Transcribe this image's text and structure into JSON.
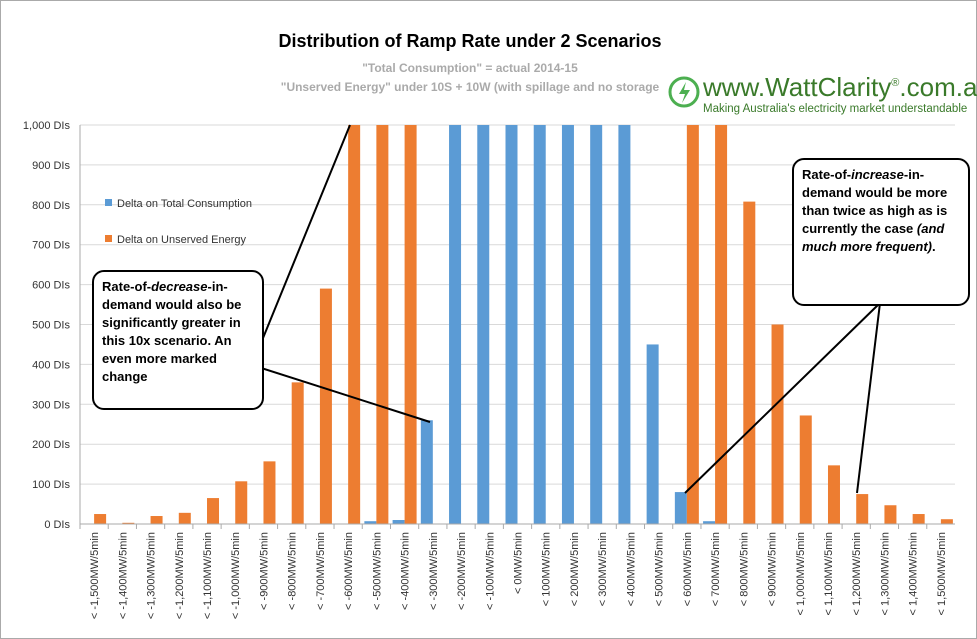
{
  "chart_data": {
    "type": "bar",
    "title": "Distribution of Ramp Rate under 2 Scenarios",
    "subtitle": [
      "\"Total Consumption\" = actual 2014-15",
      "\"Unserved Energy\" under 10S + 10W (with spillage and no storage"
    ],
    "categories": [
      "< -1,500MW/5min",
      "< -1,400MW/5min",
      "< -1,300MW/5min",
      "< -1,200MW/5min",
      "< -1,100MW/5min",
      "< -1,000MW/5min",
      "< -900MW/5min",
      "< -800MW/5min",
      "< -700MW/5min",
      "< -600MW/5min",
      "< -500MW/5min",
      "< -400MW/5min",
      "< -300MW/5min",
      "< -200MW/5min",
      "< -100MW/5min",
      "< 0MW/5min",
      "< 100MW/5min",
      "< 200MW/5min",
      "< 300MW/5min",
      "< 400MW/5min",
      "< 500MW/5min",
      "< 600MW/5min",
      "< 700MW/5min",
      "< 800MW/5min",
      "< 900MW/5min",
      "< 1,000MW/5min",
      "< 1,100MW/5min",
      "< 1,200MW/5min",
      "< 1,300MW/5min",
      "< 1,400MW/5min",
      "< 1,500MW/5min"
    ],
    "series": [
      {
        "name": "Delta on Total Consumption",
        "color": "#5b9bd5",
        "values": [
          0,
          0,
          0,
          0,
          0,
          0,
          0,
          0,
          0,
          0,
          7,
          10,
          260,
          1000,
          1000,
          1000,
          1000,
          1000,
          1000,
          1000,
          450,
          80,
          7,
          0,
          0,
          0,
          0,
          0,
          0,
          0,
          0
        ]
      },
      {
        "name": "Delta on Unserved Energy",
        "color": "#ed7d31",
        "values": [
          25,
          3,
          20,
          28,
          65,
          107,
          157,
          355,
          590,
          1000,
          1000,
          1000,
          0,
          0,
          0,
          0,
          0,
          0,
          0,
          0,
          0,
          1000,
          1000,
          808,
          500,
          272,
          147,
          75,
          47,
          25,
          12
        ]
      }
    ],
    "ylim": [
      0,
      1000
    ],
    "yticks": [
      {
        "value": 0,
        "label": "0 DIs"
      },
      {
        "value": 100,
        "label": "100 DIs"
      },
      {
        "value": 200,
        "label": "200 DIs"
      },
      {
        "value": 300,
        "label": "300 DIs"
      },
      {
        "value": 400,
        "label": "400 DIs"
      },
      {
        "value": 500,
        "label": "500 DIs"
      },
      {
        "value": 600,
        "label": "600 DIs"
      },
      {
        "value": 700,
        "label": "700 DIs"
      },
      {
        "value": 800,
        "label": "800 DIs"
      },
      {
        "value": 900,
        "label": "900 DIs"
      },
      {
        "value": 1000,
        "label": "1,000 DIs"
      }
    ],
    "grid": true,
    "annotations": [
      {
        "parts": [
          "Rate-of-",
          "decrease",
          "-in-demand would also be significantly greater in this 10x scenario.  An even more marked change"
        ]
      },
      {
        "parts": [
          "Rate-of-",
          "increase",
          "-in-demand would be more than twice as high as is currently the case ",
          "(and much more frequent)",
          "."
        ]
      }
    ]
  },
  "logo": {
    "name": "www.WattClarity",
    "mark": "®",
    "domain": ".com.au",
    "tagline": "Making Australia's electricity market understandable"
  }
}
